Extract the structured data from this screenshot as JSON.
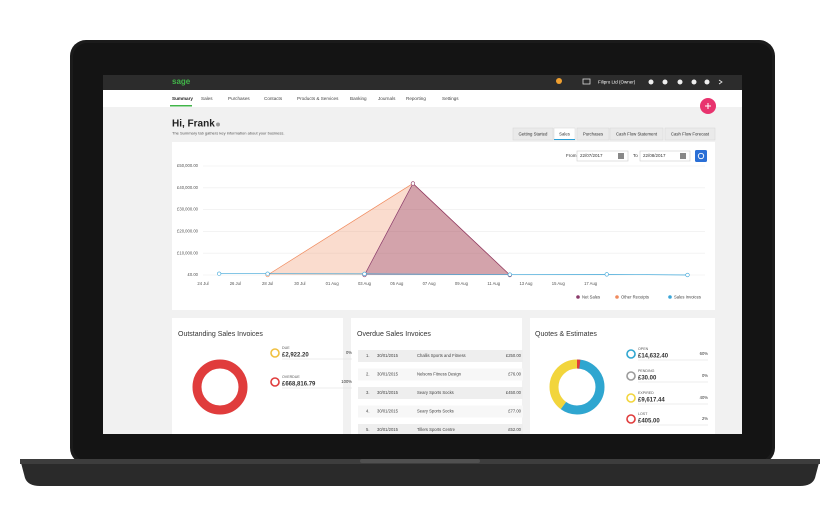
{
  "app": {
    "logo": "sage",
    "account": "Filipro Ltd (Owner)",
    "nav": [
      "Summary",
      "Sales",
      "Purchases",
      "Contacts",
      "Products & Services",
      "Banking",
      "Journals",
      "Reporting",
      "Settings"
    ]
  },
  "header": {
    "greeting": "Hi, Frank",
    "subtitle": "The Summary tab gathers key information about your business."
  },
  "tabs": [
    "Getting Started",
    "Sales",
    "Purchases",
    "Cash Flow Statement",
    "Cash Flow Forecast"
  ],
  "date_range": {
    "from_label": "From",
    "from": "22/07/2017",
    "to_label": "To",
    "to": "22/08/2017"
  },
  "chart_data": {
    "type": "area",
    "xticks": [
      "24 Jul",
      "26 Jul",
      "28 Jul",
      "30 Jul",
      "01 Aug",
      "03 Aug",
      "05 Aug",
      "07 Aug",
      "09 Aug",
      "11 Aug",
      "13 Aug",
      "15 Aug",
      "17 Aug"
    ],
    "ylim": [
      0,
      50000
    ],
    "yticks": [
      {
        "value": 0,
        "label": "£0.00"
      },
      {
        "value": 10000,
        "label": "£10,000.00"
      },
      {
        "value": 20000,
        "label": "£20,000.00"
      },
      {
        "value": 30000,
        "label": "£30,000.00"
      },
      {
        "value": 40000,
        "label": "£40,000.00"
      },
      {
        "value": 50000,
        "label": "£50,000.00"
      }
    ],
    "grid": true,
    "legend": "bottom-right",
    "series": [
      {
        "name": "Other Receipts",
        "color": "#f08a5d",
        "filled": true,
        "x": [
          "28 Jul",
          "06 Aug",
          "12 Aug"
        ],
        "values": [
          0,
          42000,
          0
        ]
      },
      {
        "name": "Net Sales",
        "color": "#8a3a6a",
        "filled": true,
        "x": [
          "03 Aug",
          "06 Aug",
          "12 Aug"
        ],
        "values": [
          0,
          42000,
          0
        ]
      },
      {
        "name": "Sales Invoices",
        "color": "#3aa5d8",
        "filled": false,
        "x": [
          "25 Jul",
          "28 Jul",
          "03 Aug",
          "12 Aug",
          "18 Aug",
          "23 Aug"
        ],
        "values": [
          600,
          600,
          500,
          200,
          300,
          0
        ]
      }
    ]
  },
  "outstanding": {
    "title": "Outstanding Sales Invoices",
    "items": [
      {
        "label": "DUE",
        "amount": "£2,922.20",
        "percent": 0,
        "percent_label": "0%",
        "color": "#f0c040"
      },
      {
        "label": "OVERDUE",
        "amount": "£668,816.79",
        "percent": 100,
        "percent_label": "100%",
        "color": "#e03c3c"
      }
    ]
  },
  "overdue": {
    "title": "Overdue Sales Invoices",
    "rows": [
      [
        "1.",
        "30/01/2015",
        "Challis Sports and Fitness",
        "£250.00"
      ],
      [
        "2.",
        "30/01/2015",
        "Nelsons Fitness Design",
        "£76.00"
      ],
      [
        "3.",
        "30/01/2015",
        "Seary Sports Socks",
        "£450.00"
      ],
      [
        "4.",
        "30/01/2015",
        "Seary Sports Socks",
        "£77.00"
      ],
      [
        "5.",
        "30/01/2015",
        "Tillers Sports Centre",
        "£52.00"
      ]
    ]
  },
  "quotes": {
    "title": "Quotes & Estimates",
    "items": [
      {
        "label": "OPEN",
        "amount": "£14,632.40",
        "percent": 60,
        "percent_label": "60%",
        "color": "#2fa6d0"
      },
      {
        "label": "PENDING",
        "amount": "£30.00",
        "percent": 0,
        "percent_label": "0%",
        "color": "#9b9b9b"
      },
      {
        "label": "EXPIRED",
        "amount": "£9,617.44",
        "percent": 40,
        "percent_label": "40%",
        "color": "#f2d53c"
      },
      {
        "label": "LOST",
        "amount": "£405.00",
        "percent": 2,
        "percent_label": "2%",
        "color": "#e03c3c"
      }
    ]
  }
}
